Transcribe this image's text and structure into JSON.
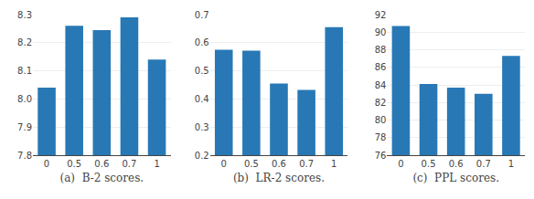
{
  "chart_data": [
    {
      "type": "bar",
      "xlabel": "(a)  B-2 scores.",
      "categories": [
        "0",
        "0.5",
        "0.6",
        "0.7",
        "1"
      ],
      "values": [
        8.04,
        8.26,
        8.245,
        8.29,
        8.14
      ],
      "color": "#2878b5",
      "ylim": [
        7.8,
        8.3
      ],
      "yticks": [
        7.8,
        7.9,
        {
          "value": 8.0,
          "label": "8.0"
        },
        8.1,
        8.2,
        8.3
      ],
      "grid": true
    },
    {
      "type": "bar",
      "xlabel": "(b)  LR-2 scores.",
      "categories": [
        "0",
        "0.5",
        "0.6",
        "0.7",
        "1"
      ],
      "values": [
        0.575,
        0.572,
        0.455,
        0.432,
        0.655
      ],
      "color": "#2878b5",
      "ylim": [
        0.2,
        0.7
      ],
      "yticks": [
        0.2,
        0.3,
        0.4,
        0.5,
        0.6,
        0.7
      ],
      "grid": true
    },
    {
      "type": "bar",
      "xlabel": "(c)  PPL scores.",
      "categories": [
        "0",
        "0.5",
        "0.6",
        "0.7",
        "1"
      ],
      "values": [
        90.7,
        84.1,
        83.7,
        83.0,
        87.3
      ],
      "color": "#2878b5",
      "ylim": [
        76,
        92
      ],
      "yticks": [
        76,
        78,
        80,
        82,
        84,
        86,
        88,
        90,
        92
      ],
      "grid": true
    }
  ]
}
